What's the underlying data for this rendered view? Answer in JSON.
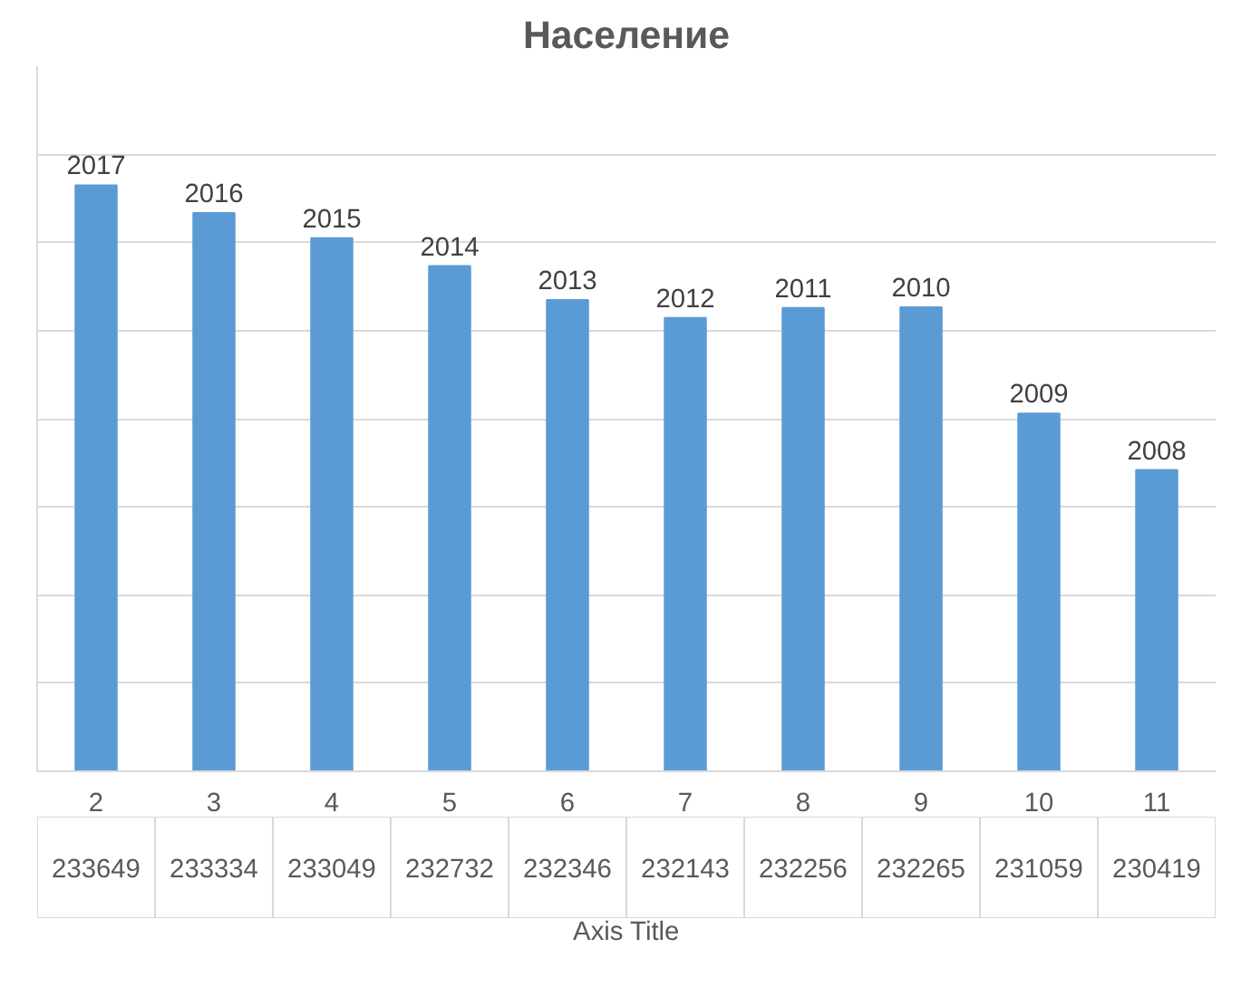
{
  "chart_data": {
    "type": "bar",
    "title": "Население",
    "xlabel": "Axis Title",
    "categories": [
      "2",
      "3",
      "4",
      "5",
      "6",
      "7",
      "8",
      "9",
      "10",
      "11"
    ],
    "values": [
      233649,
      233334,
      233049,
      232732,
      232346,
      232143,
      232256,
      232265,
      231059,
      230419
    ],
    "color": "#5b9bd5",
    "ylim": [
      227000,
      235000
    ],
    "tick_labels": "x",
    "grid": "y",
    "data_labels": true,
    "annotations": [
      {
        "text": "2017",
        "x": "2",
        "y": 233649
      },
      {
        "text": "2016",
        "x": "3",
        "y": 233334
      },
      {
        "text": "2015",
        "x": "4",
        "y": 233049
      },
      {
        "text": "2014",
        "x": "5",
        "y": 232732
      },
      {
        "text": "2013",
        "x": "6",
        "y": 232346
      },
      {
        "text": "2012",
        "x": "7",
        "y": 232143
      },
      {
        "text": "2011",
        "x": "8",
        "y": 232256
      },
      {
        "text": "2010",
        "x": "9",
        "y": 232265
      },
      {
        "text": "2009",
        "x": "10",
        "y": 231059
      },
      {
        "text": "2008",
        "x": "11",
        "y": 230419
      }
    ]
  }
}
